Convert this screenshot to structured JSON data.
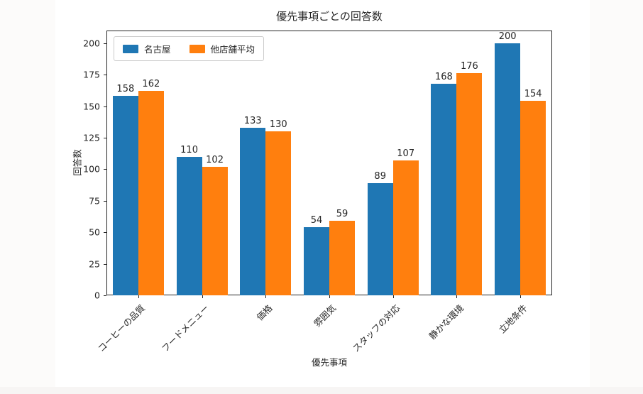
{
  "chart_data": {
    "type": "bar",
    "title": "優先事項ごとの回答数",
    "xlabel": "優先事項",
    "ylabel": "回答数",
    "categories": [
      "コーヒーの品質",
      "フードメニュー",
      "価格",
      "雰囲気",
      "スタッフの対応",
      "静かな環境",
      "立地条件"
    ],
    "series": [
      {
        "name": "名古屋",
        "color": "#1f77b4",
        "values": [
          158,
          110,
          133,
          54,
          89,
          168,
          200
        ]
      },
      {
        "name": "他店舗平均",
        "color": "#ff7f0e",
        "values": [
          162,
          102,
          130,
          59,
          107,
          176,
          154
        ]
      }
    ],
    "ylim": [
      0,
      210
    ],
    "yticks": [
      0,
      25,
      50,
      75,
      100,
      125,
      150,
      175,
      200
    ],
    "grid": false,
    "bar_value_labels": true,
    "legend_position": "upper left",
    "legend_orientation": "horizontal"
  }
}
